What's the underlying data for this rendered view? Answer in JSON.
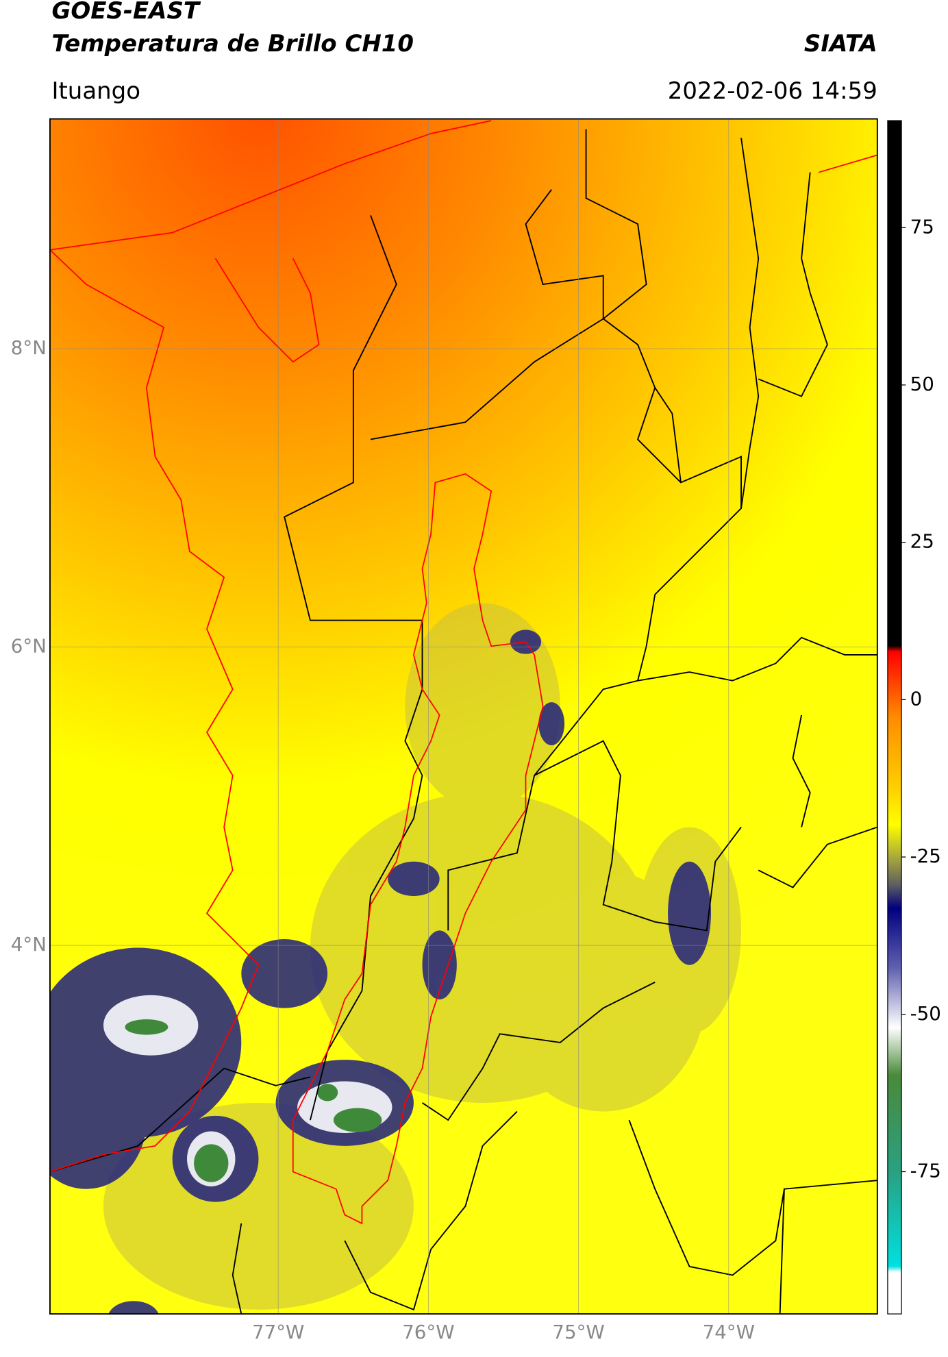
{
  "title": "GOES-EAST",
  "subtitle": "Temperatura de Brillo CH10",
  "organization": "SIATA",
  "location": "Ituango",
  "datetime": "2022-02-06 14:59",
  "map": {
    "xlim": [
      -78.52,
      -73.01
    ],
    "ylim": [
      1.53,
      9.54
    ],
    "xticks": [
      {
        "value": -77,
        "label": "77°W"
      },
      {
        "value": -76,
        "label": "76°W"
      },
      {
        "value": -75,
        "label": "75°W"
      },
      {
        "value": -74,
        "label": "74°W"
      }
    ],
    "yticks": [
      {
        "value": 8,
        "label": "8°N"
      },
      {
        "value": 6,
        "label": "6°N"
      },
      {
        "value": 4,
        "label": "4°N"
      }
    ],
    "grid": true
  },
  "colorbar": {
    "lim": [
      -97.6,
      92
    ],
    "ticks": [
      75,
      50,
      25,
      0,
      -25,
      -50,
      -75
    ]
  }
}
